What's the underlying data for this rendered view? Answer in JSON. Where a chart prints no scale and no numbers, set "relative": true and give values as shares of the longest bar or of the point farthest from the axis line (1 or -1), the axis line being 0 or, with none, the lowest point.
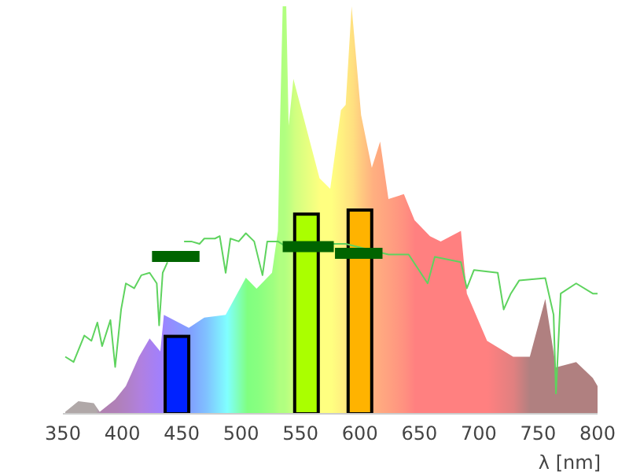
{
  "chart_data": {
    "type": "area",
    "relative": true,
    "xlabel": "λ [nm]",
    "xlim": [
      350,
      800
    ],
    "xticks": [
      350,
      400,
      450,
      500,
      550,
      600,
      650,
      700,
      750,
      800
    ],
    "series": [
      {
        "x": [
          352,
          363,
          376,
          381,
          394,
          403,
          414,
          423,
          432,
          435,
          456,
          469,
          487,
          504,
          513,
          526,
          531,
          533,
          535,
          538,
          540,
          544,
          566,
          575,
          584,
          588,
          593,
          601,
          610,
          617,
          624,
          637,
          646,
          659,
          668,
          685,
          690,
          707,
          729,
          743,
          756,
          765,
          782,
          796,
          800
        ],
        "values": [
          0.005,
          0.031,
          0.026,
          0.005,
          0.035,
          0.068,
          0.14,
          0.185,
          0.153,
          0.243,
          0.211,
          0.236,
          0.243,
          0.334,
          0.307,
          0.346,
          0.449,
          0.745,
          1,
          1,
          0.707,
          0.822,
          0.578,
          0.552,
          0.745,
          0.758,
          1,
          0.733,
          0.604,
          0.668,
          0.527,
          0.539,
          0.475,
          0.436,
          0.423,
          0.449,
          0.295,
          0.179,
          0.14,
          0.14,
          0.282,
          0.114,
          0.127,
          0.088,
          0.068
        ],
        "colors": [
          "#b0a8a8",
          "#b0a8a8",
          "#b0a8a8",
          "#b080b0",
          "#b080b8",
          "#b080c8",
          "#b080e0",
          "#a880f0",
          "#a080ff",
          "#9888ff",
          "#80a0ff",
          "#80c0ff",
          "#80ffff",
          "#80ff80",
          "#88ff80",
          "#a0ff80",
          "#b0ff80",
          "#b0ff80",
          "#b0ff80",
          "#b8ff80",
          "#c0ff80",
          "#d0ff80",
          "#ffff80",
          "#ffff80",
          "#fff080",
          "#ffe880",
          "#ffe080",
          "#ffc880",
          "#ffb080",
          "#ffa880",
          "#ffa080",
          "#ff9080",
          "#ff8080",
          "#ff8080",
          "#ff8080",
          "#ff8080",
          "#ff8080",
          "#ff8080",
          "#e08080",
          "#b08080",
          "#b08080",
          "#b08080",
          "#b08080",
          "#b08080",
          "#b08080"
        ]
      },
      {
        "type": "line",
        "color": "#5ed35e",
        "x": [
          352,
          359,
          368,
          374,
          379,
          383,
          390,
          394,
          399,
          403,
          410,
          416,
          423,
          429,
          431,
          434,
          438,
          445,
          452,
          458,
          465,
          469,
          478,
          482,
          487,
          491,
          498,
          504,
          511,
          518,
          522,
          531,
          538,
          544,
          577,
          588,
          624,
          641,
          657,
          663,
          685,
          690,
          696,
          716,
          721,
          727,
          734,
          756,
          763,
          765,
          769,
          782,
          796,
          800
        ],
        "values": [
          0.14,
          0.127,
          0.192,
          0.179,
          0.224,
          0.166,
          0.23,
          0.115,
          0.256,
          0.32,
          0.308,
          0.34,
          0.346,
          0.32,
          0.217,
          0.346,
          0.372,
          null,
          0.423,
          0.423,
          0.417,
          0.43,
          0.43,
          0.436,
          0.346,
          0.43,
          0.423,
          0.443,
          0.423,
          0.34,
          0.423,
          0.423,
          0.41,
          0.417,
          0.417,
          0.417,
          0.391,
          0.391,
          0.32,
          0.385,
          0.372,
          0.308,
          0.353,
          0.346,
          0.256,
          0.295,
          0.327,
          0.333,
          0.243,
          0.05,
          0.295,
          0.32,
          0.295,
          0.295
        ]
      },
      {
        "type": "line",
        "color": "#006400",
        "x": [
          425,
          465
        ],
        "values": [
          0.386,
          0.386
        ]
      },
      {
        "type": "line",
        "color": "#006400",
        "x": [
          535,
          578
        ],
        "values": [
          0.41,
          0.41
        ]
      },
      {
        "type": "line",
        "color": "#006400",
        "x": [
          579,
          619
        ],
        "values": [
          0.394,
          0.394
        ]
      },
      {
        "type": "bar",
        "x": [
          446,
          555,
          600
        ],
        "values": [
          0.19,
          0.49,
          0.5
        ],
        "colors": [
          "#0022ff",
          "#aaff00",
          "#ffb300"
        ]
      }
    ]
  }
}
